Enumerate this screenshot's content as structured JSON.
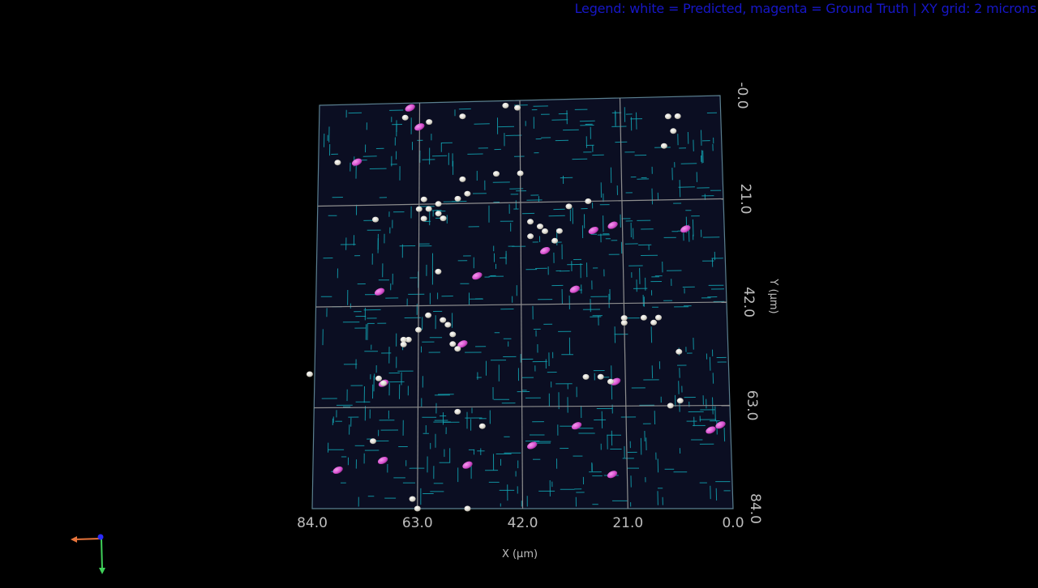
{
  "legend": {
    "text": "Legend: white = Predicted, magenta = Ground Truth  |  XY grid: 2 microns"
  },
  "colors": {
    "background": "#000000",
    "plane": "#0b0e22",
    "grid": "#8e8e8e",
    "segments": "#12a7b5",
    "predicted": "#e6e4dc",
    "ground_truth": "#d84fd0",
    "legend_text": "#1717c8",
    "axis_text": "#bdbdbd",
    "orientation_x": "#e8743b",
    "orientation_y": "#3fd15a",
    "orientation_z": "#2b2bff"
  },
  "axes": {
    "x": {
      "title": "X (µm)",
      "ticks": [
        "84.0",
        "63.0",
        "42.0",
        "21.0",
        "0.0"
      ],
      "range": [
        84.0,
        0.0
      ]
    },
    "y": {
      "title": "Y (µm)",
      "ticks": [
        "-0.0",
        "21.0",
        "42.0",
        "63.0",
        "84.0"
      ],
      "range": [
        0.0,
        84.0
      ]
    }
  },
  "orientation_widget": {
    "axes": [
      "x-axis-arrow",
      "y-axis-arrow",
      "z-axis-dot"
    ]
  },
  "objects": {
    "predicted": [
      [
        66,
        3
      ],
      [
        61,
        4
      ],
      [
        54,
        3
      ],
      [
        42.5,
        1.5
      ],
      [
        45,
        1
      ],
      [
        12,
        10
      ],
      [
        9,
        4
      ],
      [
        10,
        7
      ],
      [
        80,
        12
      ],
      [
        54,
        16
      ],
      [
        47,
        15
      ],
      [
        42,
        15
      ],
      [
        62,
        20
      ],
      [
        61,
        22
      ],
      [
        63,
        22
      ],
      [
        59,
        21
      ],
      [
        59,
        23
      ],
      [
        58,
        24
      ],
      [
        62,
        24
      ],
      [
        53,
        19
      ],
      [
        55,
        20
      ],
      [
        72,
        24
      ],
      [
        32,
        22
      ],
      [
        28,
        21
      ],
      [
        38,
        26
      ],
      [
        40,
        25
      ],
      [
        37,
        27
      ],
      [
        35,
        29
      ],
      [
        34,
        27
      ],
      [
        40,
        28
      ],
      [
        59,
        35
      ],
      [
        61,
        44
      ],
      [
        58,
        45
      ],
      [
        57,
        46
      ],
      [
        56,
        48
      ],
      [
        56,
        50
      ],
      [
        55,
        51
      ],
      [
        63,
        47
      ],
      [
        65,
        49
      ],
      [
        66,
        49
      ],
      [
        66,
        50
      ],
      [
        17,
        45
      ],
      [
        15,
        46
      ],
      [
        14,
        45
      ],
      [
        21,
        46
      ],
      [
        10,
        52
      ],
      [
        85,
        56
      ],
      [
        71,
        57
      ],
      [
        70,
        58
      ],
      [
        29,
        57
      ],
      [
        26,
        57
      ],
      [
        24,
        58
      ],
      [
        12,
        63
      ],
      [
        10,
        62
      ],
      [
        55,
        64
      ],
      [
        50,
        67
      ],
      [
        64,
        82
      ],
      [
        63,
        84
      ],
      [
        53,
        84
      ],
      [
        21,
        45
      ],
      [
        11,
        4
      ],
      [
        72,
        70
      ]
    ],
    "ground_truth": [
      [
        65,
        1
      ],
      [
        63,
        5
      ],
      [
        76,
        12
      ],
      [
        23,
        26
      ],
      [
        27,
        27
      ],
      [
        37,
        31
      ],
      [
        8,
        27
      ],
      [
        51,
        36
      ],
      [
        71,
        39
      ],
      [
        31,
        39
      ],
      [
        54,
        50
      ],
      [
        70,
        58
      ],
      [
        23,
        58
      ],
      [
        31,
        67
      ],
      [
        40,
        71
      ],
      [
        2,
        67
      ],
      [
        4,
        68
      ],
      [
        70,
        74
      ],
      [
        53,
        75
      ],
      [
        79,
        76
      ],
      [
        24,
        77
      ]
    ]
  }
}
